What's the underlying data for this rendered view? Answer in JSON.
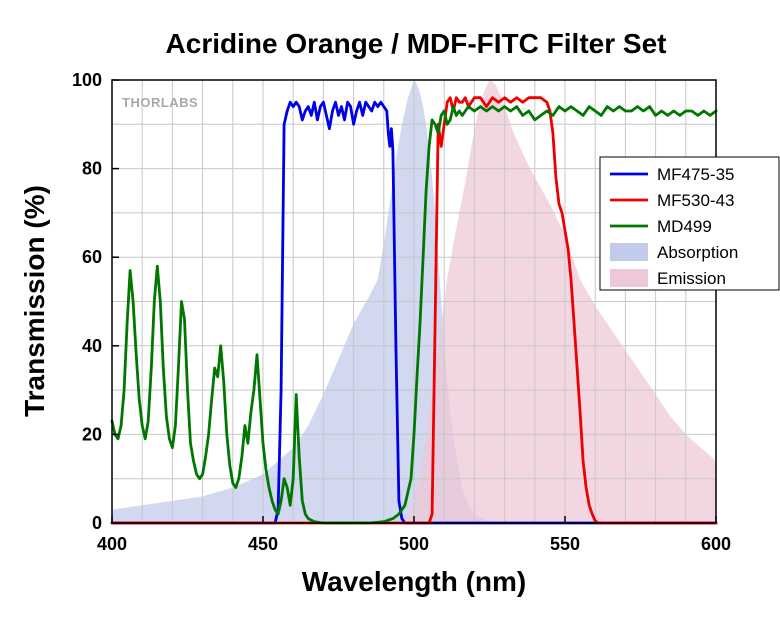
{
  "chart_data": {
    "type": "line",
    "title": "Acridine Orange / MDF-FITC Filter Set",
    "xlabel": "Wavelength (nm)",
    "ylabel": "Transmission (%)",
    "xlim": [
      400,
      600
    ],
    "ylim": [
      0,
      100
    ],
    "xticks": [
      400,
      450,
      500,
      550,
      600
    ],
    "yticks": [
      0,
      20,
      40,
      60,
      80,
      100
    ],
    "grid": true,
    "legend_position": "right",
    "logo_text": "THORLABS",
    "series": [
      {
        "name": "MF475-35",
        "kind": "line",
        "color": "#0000e6",
        "points": [
          [
            400,
            0
          ],
          [
            450,
            0
          ],
          [
            454,
            0
          ],
          [
            455,
            3
          ],
          [
            456,
            30
          ],
          [
            457,
            90
          ],
          [
            458,
            93
          ],
          [
            459,
            95
          ],
          [
            460,
            94
          ],
          [
            461,
            95
          ],
          [
            462,
            94
          ],
          [
            463,
            91
          ],
          [
            464,
            93
          ],
          [
            465,
            94
          ],
          [
            466,
            92
          ],
          [
            467,
            95
          ],
          [
            468,
            91
          ],
          [
            469,
            94
          ],
          [
            470,
            95
          ],
          [
            471,
            92
          ],
          [
            472,
            89
          ],
          [
            473,
            93
          ],
          [
            474,
            95
          ],
          [
            475,
            92
          ],
          [
            476,
            94
          ],
          [
            477,
            91
          ],
          [
            478,
            95
          ],
          [
            479,
            94
          ],
          [
            480,
            90
          ],
          [
            481,
            93
          ],
          [
            482,
            95
          ],
          [
            483,
            92
          ],
          [
            484,
            95
          ],
          [
            485,
            94
          ],
          [
            486,
            93
          ],
          [
            487,
            95
          ],
          [
            488,
            94
          ],
          [
            489,
            95
          ],
          [
            490,
            94
          ],
          [
            491,
            93
          ],
          [
            491.5,
            88
          ],
          [
            492,
            85
          ],
          [
            492.5,
            89
          ],
          [
            493,
            84
          ],
          [
            494,
            40
          ],
          [
            495,
            5
          ],
          [
            496,
            1
          ],
          [
            497,
            0
          ],
          [
            600,
            0
          ]
        ]
      },
      {
        "name": "MF530-43",
        "kind": "line",
        "color": "#ee0000",
        "points": [
          [
            400,
            0
          ],
          [
            505,
            0
          ],
          [
            506,
            2
          ],
          [
            507,
            45
          ],
          [
            508,
            90
          ],
          [
            509,
            85
          ],
          [
            510,
            90
          ],
          [
            511,
            95
          ],
          [
            512,
            96
          ],
          [
            513,
            93
          ],
          [
            514,
            96
          ],
          [
            515,
            95
          ],
          [
            516,
            95
          ],
          [
            517,
            96
          ],
          [
            518,
            94
          ],
          [
            519,
            95
          ],
          [
            520,
            96
          ],
          [
            522,
            96
          ],
          [
            524,
            94
          ],
          [
            526,
            96
          ],
          [
            528,
            95
          ],
          [
            530,
            96
          ],
          [
            532,
            95
          ],
          [
            534,
            96
          ],
          [
            536,
            95
          ],
          [
            538,
            96
          ],
          [
            540,
            96
          ],
          [
            542,
            96
          ],
          [
            544,
            95
          ],
          [
            545,
            93
          ],
          [
            546,
            88
          ],
          [
            547,
            78
          ],
          [
            548,
            72
          ],
          [
            549,
            70
          ],
          [
            550,
            66
          ],
          [
            551,
            62
          ],
          [
            552,
            55
          ],
          [
            553,
            45
          ],
          [
            554,
            35
          ],
          [
            555,
            25
          ],
          [
            556,
            14
          ],
          [
            557,
            8
          ],
          [
            558,
            4
          ],
          [
            559,
            2
          ],
          [
            560,
            0.5
          ],
          [
            561,
            0
          ],
          [
            600,
            0
          ]
        ]
      },
      {
        "name": "MD499",
        "kind": "line",
        "color": "#007700",
        "points": [
          [
            400,
            23
          ],
          [
            401,
            20
          ],
          [
            402,
            19
          ],
          [
            403,
            22
          ],
          [
            404,
            30
          ],
          [
            405,
            45
          ],
          [
            406,
            57
          ],
          [
            407,
            50
          ],
          [
            408,
            38
          ],
          [
            409,
            28
          ],
          [
            410,
            22
          ],
          [
            411,
            19
          ],
          [
            412,
            23
          ],
          [
            413,
            35
          ],
          [
            414,
            50
          ],
          [
            415,
            58
          ],
          [
            416,
            50
          ],
          [
            417,
            35
          ],
          [
            418,
            24
          ],
          [
            419,
            19
          ],
          [
            420,
            17
          ],
          [
            421,
            22
          ],
          [
            422,
            35
          ],
          [
            423,
            50
          ],
          [
            424,
            46
          ],
          [
            425,
            30
          ],
          [
            426,
            18
          ],
          [
            427,
            14
          ],
          [
            428,
            11
          ],
          [
            429,
            10
          ],
          [
            430,
            11
          ],
          [
            431,
            15
          ],
          [
            432,
            20
          ],
          [
            433,
            28
          ],
          [
            434,
            35
          ],
          [
            435,
            33
          ],
          [
            436,
            40
          ],
          [
            437,
            32
          ],
          [
            438,
            20
          ],
          [
            439,
            13
          ],
          [
            440,
            9
          ],
          [
            441,
            8
          ],
          [
            442,
            10
          ],
          [
            443,
            15
          ],
          [
            444,
            22
          ],
          [
            445,
            18
          ],
          [
            446,
            25
          ],
          [
            447,
            30
          ],
          [
            448,
            38
          ],
          [
            449,
            28
          ],
          [
            450,
            18
          ],
          [
            451,
            12
          ],
          [
            452,
            8
          ],
          [
            453,
            5
          ],
          [
            454,
            3
          ],
          [
            455,
            2
          ],
          [
            456,
            5
          ],
          [
            457,
            10
          ],
          [
            458,
            8
          ],
          [
            459,
            4
          ],
          [
            460,
            10
          ],
          [
            461,
            29
          ],
          [
            462,
            15
          ],
          [
            463,
            5
          ],
          [
            464,
            2
          ],
          [
            465,
            1
          ],
          [
            467,
            0.3
          ],
          [
            470,
            0
          ],
          [
            485,
            0
          ],
          [
            490,
            0.3
          ],
          [
            493,
            1
          ],
          [
            495,
            2
          ],
          [
            497,
            4
          ],
          [
            499,
            10
          ],
          [
            500,
            20
          ],
          [
            501,
            33
          ],
          [
            502,
            45
          ],
          [
            503,
            60
          ],
          [
            504,
            75
          ],
          [
            505,
            85
          ],
          [
            506,
            91
          ],
          [
            507,
            90
          ],
          [
            508,
            88
          ],
          [
            509,
            92
          ],
          [
            510,
            93
          ],
          [
            511,
            90
          ],
          [
            512,
            91
          ],
          [
            513,
            94
          ],
          [
            514,
            92
          ],
          [
            515,
            93
          ],
          [
            516,
            92
          ],
          [
            517,
            93
          ],
          [
            518,
            94
          ],
          [
            520,
            93
          ],
          [
            522,
            94
          ],
          [
            524,
            93
          ],
          [
            526,
            94
          ],
          [
            528,
            93
          ],
          [
            530,
            94
          ],
          [
            532,
            93
          ],
          [
            534,
            94
          ],
          [
            536,
            92
          ],
          [
            538,
            93
          ],
          [
            540,
            91
          ],
          [
            542,
            92
          ],
          [
            544,
            93
          ],
          [
            546,
            92
          ],
          [
            548,
            94
          ],
          [
            550,
            93
          ],
          [
            552,
            94
          ],
          [
            554,
            93
          ],
          [
            556,
            92
          ],
          [
            558,
            94
          ],
          [
            560,
            93
          ],
          [
            562,
            92
          ],
          [
            564,
            94
          ],
          [
            566,
            93
          ],
          [
            568,
            94
          ],
          [
            570,
            93
          ],
          [
            572,
            93
          ],
          [
            574,
            94
          ],
          [
            576,
            93
          ],
          [
            578,
            94
          ],
          [
            580,
            92
          ],
          [
            582,
            93
          ],
          [
            584,
            92
          ],
          [
            586,
            93
          ],
          [
            588,
            92
          ],
          [
            590,
            93
          ],
          [
            592,
            93
          ],
          [
            594,
            92
          ],
          [
            596,
            93
          ],
          [
            598,
            92
          ],
          [
            600,
            93
          ]
        ]
      },
      {
        "name": "Absorption",
        "kind": "area",
        "color": "#c2cbea",
        "points": [
          [
            400,
            3
          ],
          [
            410,
            4
          ],
          [
            420,
            5
          ],
          [
            430,
            6
          ],
          [
            440,
            8
          ],
          [
            450,
            11
          ],
          [
            455,
            14
          ],
          [
            460,
            17
          ],
          [
            465,
            22
          ],
          [
            470,
            29
          ],
          [
            475,
            37
          ],
          [
            480,
            45
          ],
          [
            485,
            51
          ],
          [
            488,
            55
          ],
          [
            490,
            63
          ],
          [
            492,
            72
          ],
          [
            494,
            82
          ],
          [
            496,
            90
          ],
          [
            498,
            96
          ],
          [
            499,
            98
          ],
          [
            500,
            100
          ],
          [
            501,
            99
          ],
          [
            502,
            97
          ],
          [
            503,
            94
          ],
          [
            504,
            90
          ],
          [
            505,
            84
          ],
          [
            506,
            78
          ],
          [
            507,
            70
          ],
          [
            508,
            60
          ],
          [
            509,
            50
          ],
          [
            510,
            40
          ],
          [
            511,
            32
          ],
          [
            512,
            25
          ],
          [
            514,
            15
          ],
          [
            516,
            8
          ],
          [
            518,
            4
          ],
          [
            520,
            2
          ],
          [
            524,
            0.5
          ],
          [
            530,
            0
          ]
        ]
      },
      {
        "name": "Emission",
        "kind": "area",
        "color": "#edc8d8",
        "points": [
          [
            497,
            0
          ],
          [
            499,
            3
          ],
          [
            501,
            8
          ],
          [
            503,
            15
          ],
          [
            505,
            25
          ],
          [
            507,
            35
          ],
          [
            509,
            45
          ],
          [
            511,
            55
          ],
          [
            513,
            63
          ],
          [
            515,
            70
          ],
          [
            517,
            77
          ],
          [
            519,
            85
          ],
          [
            521,
            92
          ],
          [
            523,
            97
          ],
          [
            525,
            100
          ],
          [
            527,
            99
          ],
          [
            529,
            96
          ],
          [
            531,
            92
          ],
          [
            533,
            88
          ],
          [
            535,
            85
          ],
          [
            537,
            82
          ],
          [
            540,
            78
          ],
          [
            545,
            72
          ],
          [
            550,
            65
          ],
          [
            555,
            55
          ],
          [
            560,
            49
          ],
          [
            565,
            44
          ],
          [
            570,
            39
          ],
          [
            575,
            34
          ],
          [
            580,
            29
          ],
          [
            585,
            24
          ],
          [
            590,
            20
          ],
          [
            595,
            17
          ],
          [
            600,
            14
          ]
        ]
      }
    ]
  }
}
